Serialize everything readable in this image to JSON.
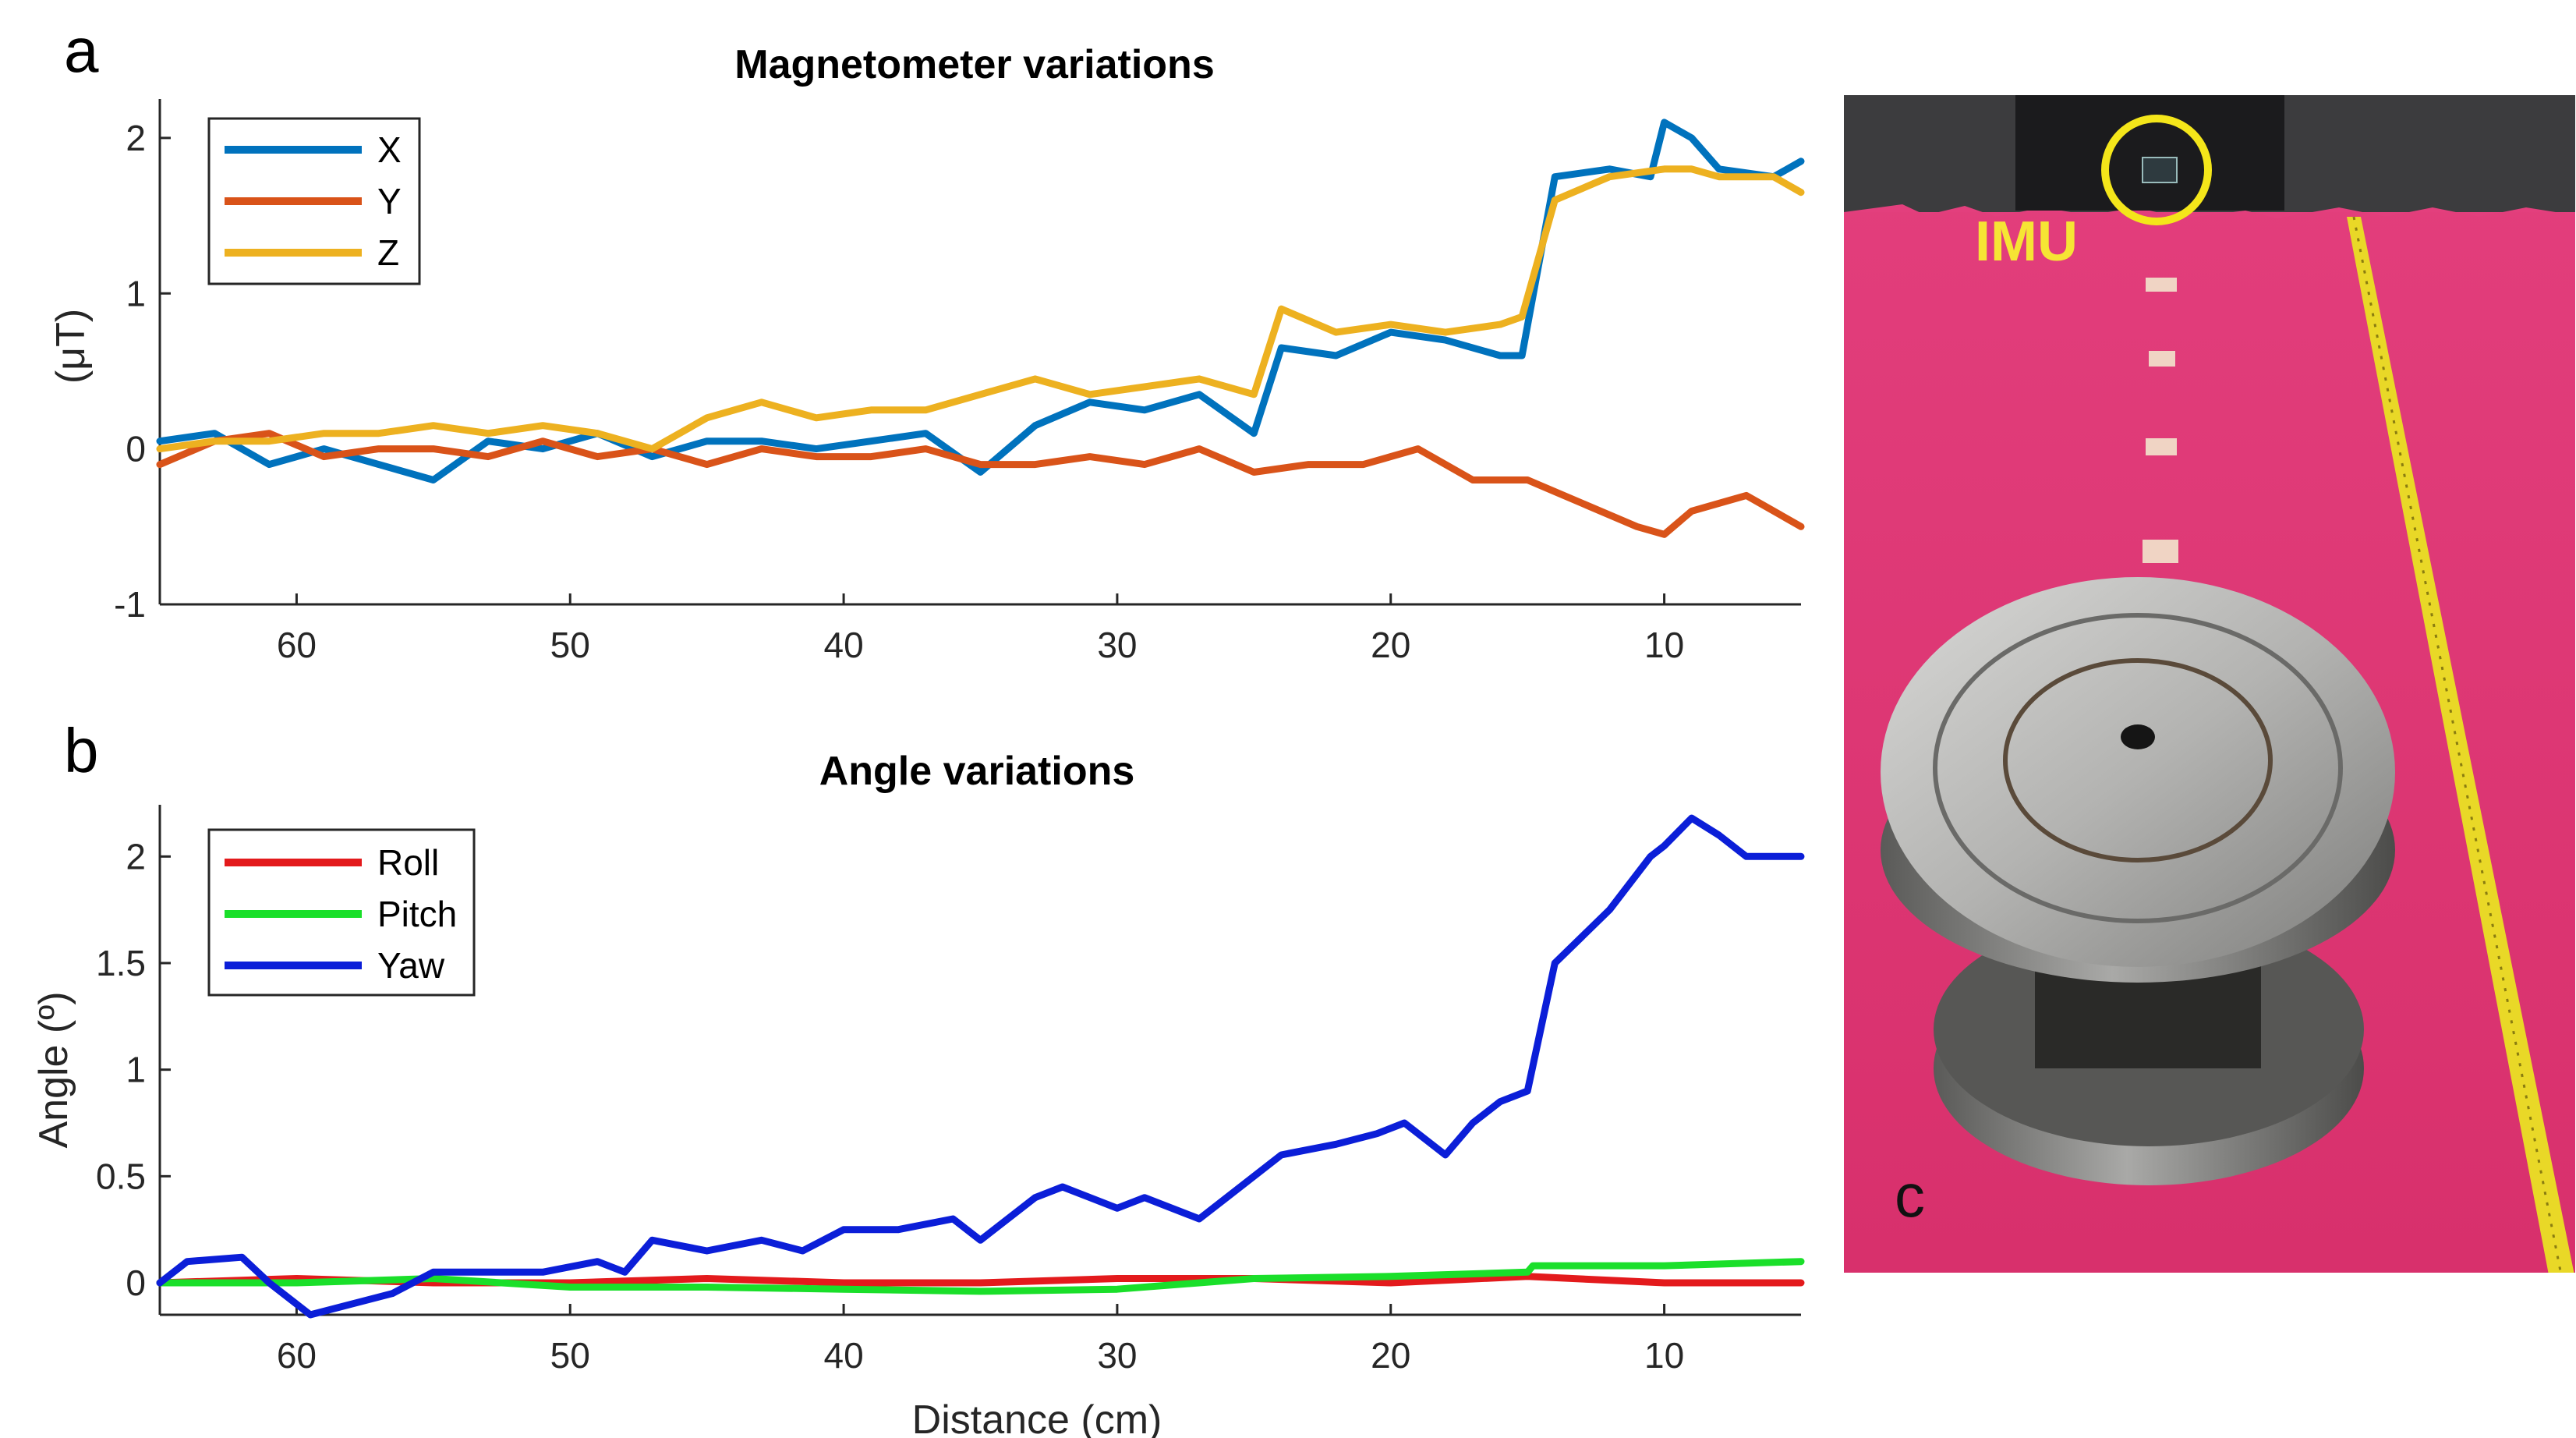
{
  "panels": {
    "a": {
      "letter": "a"
    },
    "b": {
      "letter": "b"
    },
    "c": {
      "letter": "c",
      "imu_label": "IMU"
    }
  },
  "chart_data": [
    {
      "type": "line",
      "title": "Magnetometer variations",
      "xlabel": "",
      "ylabel": "(μT)",
      "xlim": [
        65,
        5
      ],
      "ylim": [
        -1,
        2.2
      ],
      "xticks": [
        60,
        50,
        40,
        30,
        20,
        10
      ],
      "yticks": [
        -1,
        0,
        1,
        2
      ],
      "legend_position": "top-left",
      "series": [
        {
          "name": "X",
          "color": "#0072bd",
          "points": [
            [
              65,
              0.05
            ],
            [
              63,
              0.1
            ],
            [
              61,
              -0.1
            ],
            [
              59,
              0.0
            ],
            [
              57,
              -0.1
            ],
            [
              55,
              -0.2
            ],
            [
              53,
              0.05
            ],
            [
              51,
              0.0
            ],
            [
              49,
              0.1
            ],
            [
              47,
              -0.05
            ],
            [
              45,
              0.05
            ],
            [
              43,
              0.05
            ],
            [
              41,
              0.0
            ],
            [
              39,
              0.05
            ],
            [
              37,
              0.1
            ],
            [
              35,
              -0.15
            ],
            [
              33,
              0.15
            ],
            [
              31,
              0.3
            ],
            [
              29,
              0.25
            ],
            [
              27,
              0.35
            ],
            [
              25,
              0.1
            ],
            [
              24,
              0.65
            ],
            [
              22,
              0.6
            ],
            [
              20,
              0.75
            ],
            [
              18,
              0.7
            ],
            [
              16,
              0.6
            ],
            [
              15.2,
              0.6
            ],
            [
              14,
              1.75
            ],
            [
              12,
              1.8
            ],
            [
              10.5,
              1.75
            ],
            [
              10,
              2.1
            ],
            [
              9,
              2.0
            ],
            [
              8,
              1.8
            ],
            [
              6,
              1.75
            ],
            [
              5,
              1.85
            ]
          ]
        },
        {
          "name": "Y",
          "color": "#d95319",
          "points": [
            [
              65,
              -0.1
            ],
            [
              63,
              0.05
            ],
            [
              61,
              0.1
            ],
            [
              59,
              -0.05
            ],
            [
              57,
              0.0
            ],
            [
              55,
              0.0
            ],
            [
              53,
              -0.05
            ],
            [
              51,
              0.05
            ],
            [
              49,
              -0.05
            ],
            [
              47,
              0.0
            ],
            [
              45,
              -0.1
            ],
            [
              43,
              0.0
            ],
            [
              41,
              -0.05
            ],
            [
              39,
              -0.05
            ],
            [
              37,
              0.0
            ],
            [
              35,
              -0.1
            ],
            [
              33,
              -0.1
            ],
            [
              31,
              -0.05
            ],
            [
              29,
              -0.1
            ],
            [
              27,
              0.0
            ],
            [
              25,
              -0.15
            ],
            [
              23,
              -0.1
            ],
            [
              21,
              -0.1
            ],
            [
              19,
              0.0
            ],
            [
              17,
              -0.2
            ],
            [
              15,
              -0.2
            ],
            [
              13,
              -0.35
            ],
            [
              11,
              -0.5
            ],
            [
              10,
              -0.55
            ],
            [
              9,
              -0.4
            ],
            [
              7,
              -0.3
            ],
            [
              5,
              -0.5
            ]
          ]
        },
        {
          "name": "Z",
          "color": "#edb120",
          "points": [
            [
              65,
              0.0
            ],
            [
              63,
              0.05
            ],
            [
              61,
              0.05
            ],
            [
              59,
              0.1
            ],
            [
              57,
              0.1
            ],
            [
              55,
              0.15
            ],
            [
              53,
              0.1
            ],
            [
              51,
              0.15
            ],
            [
              49,
              0.1
            ],
            [
              47,
              0.0
            ],
            [
              45,
              0.2
            ],
            [
              43,
              0.3
            ],
            [
              41,
              0.2
            ],
            [
              39,
              0.25
            ],
            [
              37,
              0.25
            ],
            [
              35,
              0.35
            ],
            [
              33,
              0.45
            ],
            [
              31,
              0.35
            ],
            [
              29,
              0.4
            ],
            [
              27,
              0.45
            ],
            [
              25,
              0.35
            ],
            [
              24,
              0.9
            ],
            [
              22,
              0.75
            ],
            [
              20,
              0.8
            ],
            [
              18,
              0.75
            ],
            [
              16,
              0.8
            ],
            [
              15.2,
              0.85
            ],
            [
              14,
              1.6
            ],
            [
              12,
              1.75
            ],
            [
              10,
              1.8
            ],
            [
              9,
              1.8
            ],
            [
              8,
              1.75
            ],
            [
              6,
              1.75
            ],
            [
              5,
              1.65
            ]
          ]
        }
      ]
    },
    {
      "type": "line",
      "title": "Angle variations",
      "xlabel": "Distance (cm)",
      "ylabel": "Angle (º)",
      "xlim": [
        65,
        5
      ],
      "ylim": [
        -0.15,
        2.25
      ],
      "xticks": [
        60,
        50,
        40,
        30,
        20,
        10
      ],
      "yticks": [
        0,
        0.5,
        1,
        1.5,
        2
      ],
      "ytick_labels": [
        "0",
        "0.5",
        "1",
        "1.5",
        "2"
      ],
      "legend_position": "top-left",
      "series": [
        {
          "name": "Roll",
          "color": "#e31a1c",
          "points": [
            [
              65,
              0.0
            ],
            [
              60,
              0.02
            ],
            [
              55,
              0.0
            ],
            [
              50,
              0.0
            ],
            [
              45,
              0.02
            ],
            [
              40,
              0.0
            ],
            [
              35,
              0.0
            ],
            [
              30,
              0.02
            ],
            [
              25,
              0.02
            ],
            [
              20,
              0.0
            ],
            [
              15,
              0.03
            ],
            [
              10,
              0.0
            ],
            [
              5,
              0.0
            ]
          ]
        },
        {
          "name": "Pitch",
          "color": "#1adf2a",
          "points": [
            [
              65,
              0.0
            ],
            [
              60,
              0.0
            ],
            [
              55,
              0.02
            ],
            [
              50,
              -0.02
            ],
            [
              45,
              -0.02
            ],
            [
              40,
              -0.03
            ],
            [
              35,
              -0.04
            ],
            [
              30,
              -0.03
            ],
            [
              25,
              0.02
            ],
            [
              20,
              0.03
            ],
            [
              15,
              0.05
            ],
            [
              14.8,
              0.08
            ],
            [
              10,
              0.08
            ],
            [
              5,
              0.1
            ]
          ]
        },
        {
          "name": "Yaw",
          "color": "#0b1ed8",
          "points": [
            [
              65,
              0.0
            ],
            [
              64,
              0.1
            ],
            [
              62,
              0.12
            ],
            [
              61,
              0.0
            ],
            [
              59.5,
              -0.15
            ],
            [
              58,
              -0.1
            ],
            [
              56.5,
              -0.05
            ],
            [
              55,
              0.05
            ],
            [
              53,
              0.05
            ],
            [
              51,
              0.05
            ],
            [
              49,
              0.1
            ],
            [
              48,
              0.05
            ],
            [
              47,
              0.2
            ],
            [
              45,
              0.15
            ],
            [
              43,
              0.2
            ],
            [
              41.5,
              0.15
            ],
            [
              40,
              0.25
            ],
            [
              38,
              0.25
            ],
            [
              36,
              0.3
            ],
            [
              35,
              0.2
            ],
            [
              33,
              0.4
            ],
            [
              32,
              0.45
            ],
            [
              30,
              0.35
            ],
            [
              29,
              0.4
            ],
            [
              27,
              0.3
            ],
            [
              26,
              0.4
            ],
            [
              24,
              0.6
            ],
            [
              22,
              0.65
            ],
            [
              20.5,
              0.7
            ],
            [
              19.5,
              0.75
            ],
            [
              18,
              0.6
            ],
            [
              17,
              0.75
            ],
            [
              16,
              0.85
            ],
            [
              15,
              0.9
            ],
            [
              14,
              1.5
            ],
            [
              12,
              1.75
            ],
            [
              10.5,
              2.0
            ],
            [
              10,
              2.05
            ],
            [
              9,
              2.18
            ],
            [
              8,
              2.1
            ],
            [
              7,
              2.0
            ],
            [
              5,
              2.0
            ]
          ]
        }
      ]
    }
  ]
}
